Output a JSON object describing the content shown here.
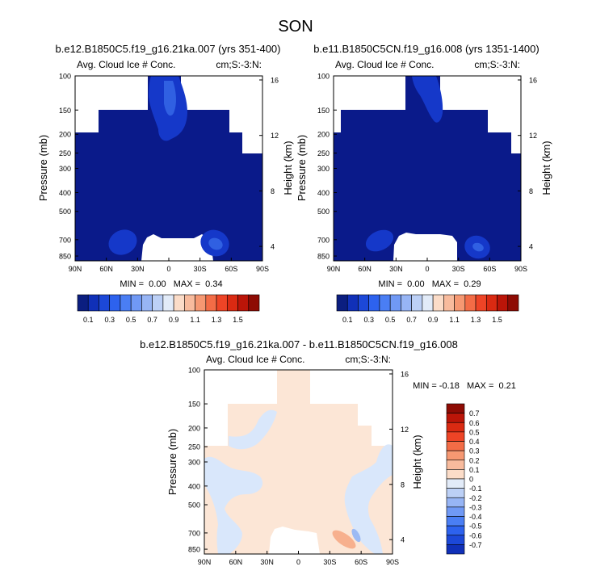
{
  "figure": {
    "title": "SON"
  },
  "panels": [
    {
      "title": "b.e12.B1850C5.f19_g16.21ka.007 (yrs 351-400)",
      "left_label": "Avg. Cloud Ice # Conc.",
      "right_label": "cm;S:-3:N:",
      "min_max_label": "MIN =  0.00   MAX =  0.34"
    },
    {
      "title": "b.e11.B1850C5CN.f19_g16.008 (yrs 1351-1400)",
      "left_label": "Avg. Cloud Ice # Conc.",
      "right_label": "cm;S:-3:N:",
      "min_max_label": "MIN =  0.00   MAX =  0.29"
    },
    {
      "title": "b.e12.B1850C5.f19_g16.21ka.007 - b.e11.B1850C5CN.f19_g16.008",
      "left_label": "Avg. Cloud Ice # Conc.",
      "right_label": "cm;S:-3:N:",
      "min_max_label": "MIN = -0.18   MAX =  0.21"
    }
  ],
  "chart_data": [
    {
      "type": "heatmap",
      "title": "b.e12.B1850C5.f19_g16.21ka.007 (yrs 351-400)",
      "xlabel": "",
      "ylabel": "Pressure (mb)",
      "y2label": "Height (km)",
      "x_ticks": [
        "90N",
        "60N",
        "30N",
        "0",
        "30S",
        "60S",
        "90S"
      ],
      "x_tick_values": [
        -90,
        -60,
        -30,
        0,
        30,
        60,
        90
      ],
      "y_ticks": [
        "100",
        "150",
        "200",
        "250",
        "300",
        "400",
        "500",
        "700",
        "850"
      ],
      "y_tick_values": [
        100,
        150,
        200,
        250,
        300,
        400,
        500,
        700,
        850
      ],
      "y2_ticks": [
        "16",
        "12",
        "8",
        "4"
      ],
      "y_scale": "log",
      "ylim": [
        100,
        900
      ],
      "xlim": [
        -90,
        90
      ],
      "min": 0.0,
      "max": 0.34
    },
    {
      "type": "heatmap",
      "title": "b.e11.B1850C5CN.f19_g16.008 (yrs 1351-1400)",
      "xlabel": "",
      "ylabel": "Pressure (mb)",
      "y2label": "Height (km)",
      "x_ticks": [
        "90N",
        "60N",
        "30N",
        "0",
        "30S",
        "60S",
        "90S"
      ],
      "x_tick_values": [
        -90,
        -60,
        -30,
        0,
        30,
        60,
        90
      ],
      "y_ticks": [
        "100",
        "150",
        "200",
        "250",
        "300",
        "400",
        "500",
        "700",
        "850"
      ],
      "y_tick_values": [
        100,
        150,
        200,
        250,
        300,
        400,
        500,
        700,
        850
      ],
      "y2_ticks": [
        "16",
        "12",
        "8",
        "4"
      ],
      "y_scale": "log",
      "ylim": [
        100,
        900
      ],
      "xlim": [
        -90,
        90
      ],
      "min": 0.0,
      "max": 0.29
    },
    {
      "type": "heatmap",
      "title": "b.e12.B1850C5.f19_g16.21ka.007 - b.e11.B1850C5CN.f19_g16.008",
      "xlabel": "",
      "ylabel": "Pressure (mb)",
      "y2label": "Height (km)",
      "x_ticks": [
        "90N",
        "60N",
        "30N",
        "0",
        "30S",
        "60S",
        "90S"
      ],
      "x_tick_values": [
        -90,
        -60,
        -30,
        0,
        30,
        60,
        90
      ],
      "y_ticks": [
        "100",
        "150",
        "200",
        "250",
        "300",
        "400",
        "500",
        "700",
        "850"
      ],
      "y_tick_values": [
        100,
        150,
        200,
        250,
        300,
        400,
        500,
        700,
        850
      ],
      "y2_ticks": [
        "16",
        "12",
        "8",
        "4"
      ],
      "y_scale": "log",
      "ylim": [
        100,
        900
      ],
      "xlim": [
        -90,
        90
      ],
      "min": -0.18,
      "max": 0.21
    }
  ],
  "colorbars": {
    "abs": {
      "orientation": "horizontal",
      "labels": [
        "0.1",
        "0.3",
        "0.5",
        "0.7",
        "0.9",
        "1.1",
        "1.3",
        "1.5"
      ],
      "colors": [
        "#0b1e80",
        "#1030b8",
        "#1c48d8",
        "#2d62ee",
        "#4a7ef4",
        "#7099f5",
        "#97b5f5",
        "#bcd0f6",
        "#e2ebf8",
        "#fbdcc8",
        "#f8bb9d",
        "#f69872",
        "#f36c46",
        "#ee4426",
        "#da2a12",
        "#bb1508",
        "#8e0b04"
      ]
    },
    "diff": {
      "orientation": "vertical",
      "labels": [
        "0.7",
        "0.6",
        "0.5",
        "0.4",
        "0.3",
        "0.2",
        "0.1",
        "0",
        "-0.1",
        "-0.2",
        "-0.3",
        "-0.4",
        "-0.5",
        "-0.6",
        "-0.7"
      ],
      "colors": [
        "#8e0b04",
        "#bb1508",
        "#da2a12",
        "#ee4426",
        "#f36c46",
        "#f69872",
        "#f8bb9d",
        "#fbdcc8",
        "#e2ebf8",
        "#bcd0f6",
        "#97b5f5",
        "#7099f5",
        "#4a7ef4",
        "#2d62ee",
        "#1c48d8",
        "#1030b8"
      ]
    }
  },
  "fill_colors": {
    "deep_blue": "#0a1a8a",
    "mid_blue": "#1538c9",
    "light_blue": "#3060e2",
    "diff_pos": "#fce6d6",
    "diff_neg": "#d9e7fb",
    "diff_pos_strong": "#f7b08e",
    "diff_neg_strong": "#9cbaf4"
  }
}
